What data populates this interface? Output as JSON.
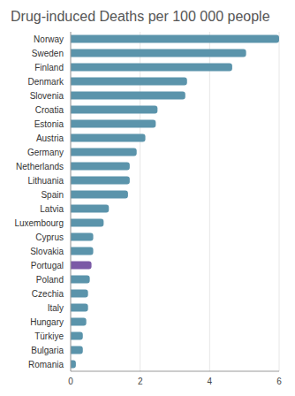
{
  "chart_data": {
    "type": "bar",
    "orientation": "horizontal",
    "title": "Drug-induced Deaths per 100 000 people",
    "categories": [
      "Norway",
      "Sweden",
      "Finland",
      "Denmark",
      "Slovenia",
      "Croatia",
      "Estonia",
      "Austria",
      "Germany",
      "Netherlands",
      "Lithuania",
      "Spain",
      "Latvia",
      "Luxembourg",
      "Cyprus",
      "Slovakia",
      "Portugal",
      "Poland",
      "Czechia",
      "Italy",
      "Hungary",
      "Türkiye",
      "Bulgaria",
      "Romania"
    ],
    "values": [
      6.0,
      5.05,
      4.65,
      3.35,
      3.3,
      2.5,
      2.45,
      2.15,
      1.9,
      1.7,
      1.7,
      1.65,
      1.1,
      0.95,
      0.65,
      0.65,
      0.6,
      0.55,
      0.5,
      0.5,
      0.45,
      0.35,
      0.35,
      0.15
    ],
    "colors": [
      "#5b94ab",
      "#5b94ab",
      "#5b94ab",
      "#5b94ab",
      "#5b94ab",
      "#5b94ab",
      "#5b94ab",
      "#5b94ab",
      "#5b94ab",
      "#5b94ab",
      "#5b94ab",
      "#5b94ab",
      "#5b94ab",
      "#5b94ab",
      "#5b94ab",
      "#5b94ab",
      "#7b5aa6",
      "#5b94ab",
      "#5b94ab",
      "#5b94ab",
      "#5b94ab",
      "#5b94ab",
      "#5b94ab",
      "#5b94ab"
    ],
    "xlim": [
      0,
      6
    ],
    "xticks": [
      0,
      2,
      4,
      6
    ],
    "grid": true
  }
}
